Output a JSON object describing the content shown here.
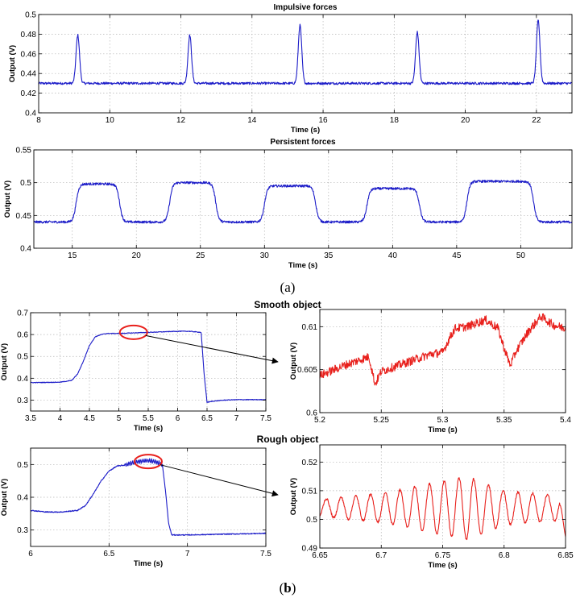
{
  "panel_labels": {
    "a": {
      "open": "(",
      "letter": "a",
      "close": ")"
    },
    "b": {
      "open": "(",
      "letter": "b",
      "close": ")"
    }
  },
  "colors": {
    "blue_trace": "#1c1cc8",
    "red_trace": "#e8201c",
    "ellipse": "#e8201c",
    "arrow": "#000000"
  },
  "chart_data": [
    {
      "id": "impulsive",
      "type": "line",
      "title": "Impulsive forces",
      "xlabel": "Time (s)",
      "ylabel": "Output (V)",
      "xlim": [
        8,
        23
      ],
      "ylim": [
        0.4,
        0.5
      ],
      "xticks": [
        8,
        10,
        12,
        14,
        16,
        18,
        20,
        22
      ],
      "yticks": [
        0.4,
        0.42,
        0.44,
        0.46,
        0.48,
        0.5
      ],
      "ytick_labels": [
        "0.4",
        "0.42",
        "0.44",
        "0.46",
        "0.48",
        "0.5"
      ],
      "grid": true,
      "color": "#1c1cc8",
      "series": [
        {
          "name": "Output",
          "baseline": 0.43,
          "peaks": [
            {
              "t": 9.1,
              "v": 0.479
            },
            {
              "t": 12.25,
              "v": 0.479
            },
            {
              "t": 15.35,
              "v": 0.489
            },
            {
              "t": 18.65,
              "v": 0.482
            },
            {
              "t": 22.05,
              "v": 0.494
            }
          ]
        }
      ]
    },
    {
      "id": "persistent",
      "type": "line",
      "title": "Persistent forces",
      "xlabel": "Time (s)",
      "ylabel": "Output (V)",
      "xlim": [
        12,
        54
      ],
      "ylim": [
        0.4,
        0.55
      ],
      "xticks": [
        15,
        20,
        25,
        30,
        35,
        40,
        45,
        50
      ],
      "yticks": [
        0.4,
        0.45,
        0.5,
        0.55
      ],
      "ytick_labels": [
        "0.4",
        "0.45",
        "0.5",
        "0.55"
      ],
      "grid": true,
      "color": "#1c1cc8",
      "series": [
        {
          "name": "Output",
          "baseline": 0.44,
          "plateaus": [
            {
              "start": 15.3,
              "end": 18.7,
              "v": 0.498
            },
            {
              "start": 22.6,
              "end": 26.2,
              "v": 0.5
            },
            {
              "start": 30.0,
              "end": 34.0,
              "v": 0.495
            },
            {
              "start": 38.0,
              "end": 42.1,
              "v": 0.491
            },
            {
              "start": 45.8,
              "end": 51.0,
              "v": 0.502
            }
          ]
        }
      ]
    },
    {
      "id": "smooth_full",
      "type": "line",
      "title": "Smooth object",
      "xlabel": "Time (s)",
      "ylabel": "Output (V)",
      "xlim": [
        3.5,
        7.5
      ],
      "ylim": [
        0.25,
        0.7
      ],
      "xticks": [
        3.5,
        4,
        4.5,
        5,
        5.5,
        6,
        6.5,
        7,
        7.5
      ],
      "yticks": [
        0.3,
        0.4,
        0.5,
        0.6,
        0.7
      ],
      "ytick_labels": [
        "0.3",
        "0.4",
        "0.5",
        "0.6",
        "0.7"
      ],
      "grid": true,
      "color": "#1c1cc8",
      "series": [
        {
          "name": "Output",
          "x": [
            3.5,
            4.0,
            4.2,
            4.3,
            4.4,
            4.5,
            4.6,
            4.7,
            4.8,
            5.0,
            5.5,
            6.0,
            6.2,
            6.4,
            6.45,
            6.5,
            6.6,
            6.8,
            7.0,
            7.5
          ],
          "y": [
            0.38,
            0.382,
            0.39,
            0.42,
            0.48,
            0.55,
            0.59,
            0.6,
            0.605,
            0.605,
            0.61,
            0.615,
            0.615,
            0.61,
            0.42,
            0.29,
            0.295,
            0.3,
            0.302,
            0.302
          ]
        }
      ],
      "annotation": {
        "shape": "ellipse",
        "center_x": 5.25,
        "center_y": 0.61,
        "arrow_to": "smooth_zoom"
      }
    },
    {
      "id": "smooth_zoom",
      "type": "line",
      "title": "",
      "xlabel": "Time (s)",
      "ylabel": "Output (V)",
      "xlim": [
        5.2,
        5.4
      ],
      "ylim": [
        0.6,
        0.612
      ],
      "xticks": [
        5.2,
        5.25,
        5.3,
        5.35,
        5.4
      ],
      "yticks": [
        0.6,
        0.605,
        0.61
      ],
      "ytick_labels": [
        "0.6",
        "0.605",
        "0.61"
      ],
      "grid": true,
      "color": "#e8201c",
      "series": [
        {
          "name": "Output",
          "x": [
            5.2,
            5.22,
            5.24,
            5.245,
            5.25,
            5.27,
            5.29,
            5.3,
            5.305,
            5.31,
            5.32,
            5.335,
            5.345,
            5.35,
            5.355,
            5.36,
            5.37,
            5.38,
            5.39,
            5.4
          ],
          "y": [
            0.6043,
            0.6055,
            0.6065,
            0.6033,
            0.6048,
            0.6058,
            0.6068,
            0.607,
            0.6085,
            0.6098,
            0.61,
            0.6108,
            0.6098,
            0.6075,
            0.6055,
            0.6072,
            0.6095,
            0.6112,
            0.6102,
            0.6098
          ]
        }
      ]
    },
    {
      "id": "rough_full",
      "type": "line",
      "title": "Rough object",
      "xlabel": "Time (s)",
      "ylabel": "Output (V)",
      "xlim": [
        6,
        7.5
      ],
      "ylim": [
        0.25,
        0.55
      ],
      "xticks": [
        6,
        6.5,
        7,
        7.5
      ],
      "yticks": [
        0.3,
        0.4,
        0.5
      ],
      "ytick_labels": [
        "0.3",
        "0.4",
        "0.5"
      ],
      "grid": true,
      "color": "#1c1cc8",
      "series": [
        {
          "name": "Output",
          "x": [
            6.0,
            6.1,
            6.2,
            6.3,
            6.35,
            6.4,
            6.45,
            6.5,
            6.55,
            6.6,
            6.65,
            6.7,
            6.75,
            6.8,
            6.84,
            6.86,
            6.88,
            6.9,
            7.0,
            7.5
          ],
          "y": [
            0.36,
            0.355,
            0.355,
            0.36,
            0.375,
            0.41,
            0.45,
            0.48,
            0.495,
            0.498,
            0.505,
            0.51,
            0.512,
            0.508,
            0.5,
            0.42,
            0.32,
            0.285,
            0.285,
            0.29
          ]
        }
      ],
      "annotation": {
        "shape": "ellipse",
        "center_x": 6.75,
        "center_y": 0.509,
        "arrow_to": "rough_zoom"
      }
    },
    {
      "id": "rough_zoom",
      "type": "line",
      "title": "",
      "xlabel": "Time (s)",
      "ylabel": "Output (V)",
      "xlim": [
        6.65,
        6.85
      ],
      "ylim": [
        0.49,
        0.526
      ],
      "xticks": [
        6.65,
        6.7,
        6.75,
        6.8,
        6.85
      ],
      "yticks": [
        0.49,
        0.5,
        0.51,
        0.52
      ],
      "ytick_labels": [
        "0.49",
        "0.5",
        "0.51",
        "0.52"
      ],
      "grid": true,
      "color": "#e8201c",
      "series": [
        {
          "name": "Output",
          "center": 0.504,
          "oscillation_period_s": 0.012,
          "envelope": [
            {
              "t": 6.65,
              "a": 0.003
            },
            {
              "t": 6.7,
              "a": 0.005
            },
            {
              "t": 6.77,
              "a": 0.011
            },
            {
              "t": 6.8,
              "a": 0.006
            },
            {
              "t": 6.85,
              "a": 0.004
            }
          ],
          "end_value": 0.494
        }
      ]
    }
  ]
}
